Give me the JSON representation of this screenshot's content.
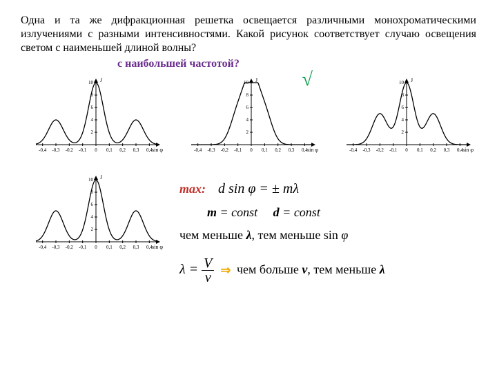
{
  "question_text": "Одна и та же дифракционная решетка освещается различными монохроматическими излучениями с разными интенсивностями. Какой рисунок соответствует случаю освещения светом с наименьшей длиной волны?",
  "subquestion_text": "с наибольшей частотой?",
  "max_label": "max:",
  "formula_max": "d sin φ = ± mλ",
  "const_line_m": "m",
  "const_line_d": "d",
  "const_text": " = const",
  "sin_line_prefix": "чем меньше ",
  "sin_line_middle": ", тем меньше sin ",
  "lambda_formula_left": "λ",
  "lambda_formula_V": "V",
  "lambda_formula_nu": "ν",
  "arrow_glyph": "⇒",
  "lambda_line_prefix": "чем больше ",
  "lambda_line_nu": "ν",
  "lambda_line_middle": ", тем меньше ",
  "lambda_sym": "λ",
  "phi_sym": "φ",
  "check_mark": "√",
  "charts": {
    "axis_x_label": "sin φ",
    "axis_y_label": "J",
    "x_ticks": [
      "-0,4",
      "-0,3",
      "-0,2",
      "-0,1",
      "0",
      "0,1",
      "0,2",
      "0,3",
      "0,4"
    ],
    "chart1": {
      "title_y_max": 10,
      "y_ticks": [
        2,
        4,
        6,
        8,
        10
      ],
      "peaks": [
        {
          "x": -0.3,
          "h": 4
        },
        {
          "x": 0,
          "h": 10
        },
        {
          "x": 0.3,
          "h": 4
        }
      ]
    },
    "chart2": {
      "title_y_max": 10,
      "y_ticks": [
        2,
        4,
        6,
        8,
        10
      ],
      "peaks": [
        {
          "x": -0.1,
          "h": 5
        },
        {
          "x": 0,
          "h": 10
        },
        {
          "x": 0.1,
          "h": 5
        }
      ]
    },
    "chart3": {
      "title_y_max": 10,
      "y_ticks": [
        2,
        4,
        6,
        8,
        10
      ],
      "peaks": [
        {
          "x": -0.2,
          "h": 5
        },
        {
          "x": 0,
          "h": 10
        },
        {
          "x": 0.2,
          "h": 5
        }
      ]
    },
    "chart4": {
      "title_y_max": 10,
      "y_ticks": [
        2,
        4,
        6,
        8,
        10
      ],
      "peaks": [
        {
          "x": -0.3,
          "h": 5
        },
        {
          "x": 0,
          "h": 10
        },
        {
          "x": 0.3,
          "h": 5
        }
      ]
    },
    "colors": {
      "stroke": "#000000",
      "tick_font": "#000000",
      "bg": "#ffffff"
    },
    "line_width": 1,
    "tick_fontsize": 7
  }
}
